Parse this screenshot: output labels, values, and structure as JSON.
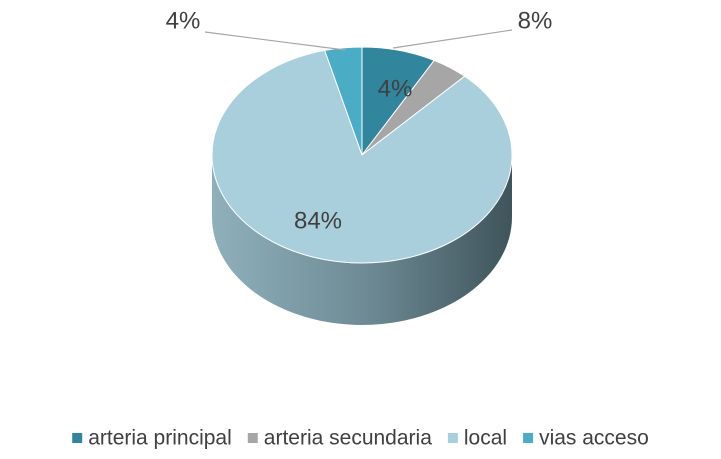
{
  "chart_data": {
    "type": "pie",
    "categories": [
      "arteria principal",
      "arteria secundaria",
      "local",
      "vias acceso"
    ],
    "values": [
      8,
      4,
      84,
      4
    ],
    "value_labels": [
      "8%",
      "4%",
      "84%",
      "4%"
    ],
    "colors": [
      "#31859c",
      "#a6a6a6",
      "#a9cfdc",
      "#4bacc6"
    ],
    "legend": "bottom"
  }
}
